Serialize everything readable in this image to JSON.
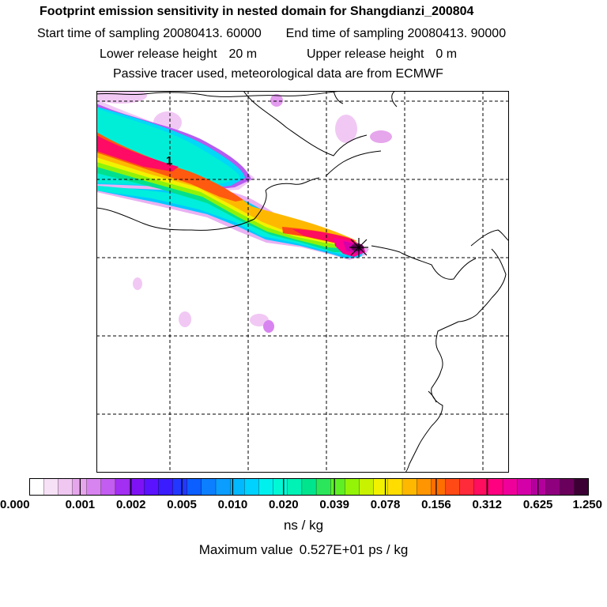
{
  "header": {
    "title": "Footprint emission sensitivity in nested domain for Shangdianzi_200804",
    "start_label": "Start time of sampling",
    "start_value": "20080413. 60000",
    "end_label": "End time of sampling",
    "end_value": "20080413. 90000",
    "lower_label": "Lower release height",
    "lower_value": "20 m",
    "upper_label": "Upper release height",
    "upper_value": "0 m",
    "tracer_note": "Passive tracer used, meteorological data are from ECMWF"
  },
  "map": {
    "contour_label": "1",
    "receptor_marker": "station-star-marker"
  },
  "colorbar": {
    "tick_labels": [
      "0.000",
      "0.001",
      "0.002",
      "0.005",
      "0.010",
      "0.020",
      "0.039",
      "0.078",
      "0.156",
      "0.312",
      "0.625",
      "1.250"
    ],
    "colors": [
      "#ffffff",
      "#f6e1f6",
      "#efc7f0",
      "#e6a6ec",
      "#d884f0",
      "#c35cf0",
      "#a22ff2",
      "#7f12f5",
      "#5a12ff",
      "#3a1cff",
      "#2238ff",
      "#0b5eff",
      "#0b7fff",
      "#0b9dff",
      "#02b8ff",
      "#00d2ff",
      "#00f0ee",
      "#00f8d5",
      "#00f2b5",
      "#00e48e",
      "#2be65a",
      "#5eef25",
      "#93f408",
      "#c9f200",
      "#f2f200",
      "#ffdd00",
      "#ffb800",
      "#ff9500",
      "#ff6e00",
      "#ff4a16",
      "#ff2a3a",
      "#ff0d5e",
      "#ff0080",
      "#f0009a",
      "#d400a8",
      "#b3009c",
      "#8f007e",
      "#6a005c",
      "#3c0034"
    ],
    "units": "ns / kg"
  },
  "footer": {
    "max_label": "Maximum value",
    "max_value": "0.527E+01 ps / kg"
  }
}
